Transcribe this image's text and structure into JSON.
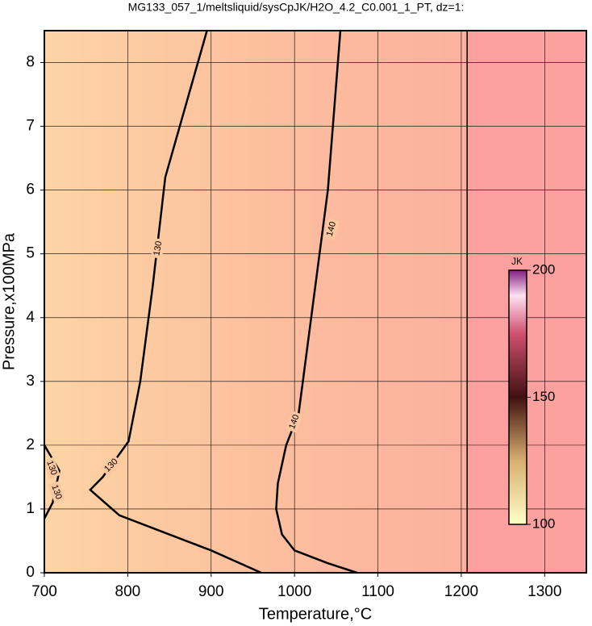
{
  "chart_data": {
    "type": "contour",
    "title": "MG133_057_1/meltsliquid/sysCpJK/H2O_4.2_C0.001_1_PT, dz=1:",
    "x_label": "Temperature,°C",
    "y_label": "Pressure,x100MPa",
    "xlim": [
      700,
      1350
    ],
    "ylim": [
      0,
      8.5
    ],
    "xticks": [
      700,
      800,
      900,
      1000,
      1100,
      1200,
      1300
    ],
    "yticks": [
      0,
      1,
      2,
      3,
      4,
      5,
      6,
      7,
      8
    ],
    "grid": true,
    "boundary_x": 1207,
    "contours": [
      {
        "level": 130,
        "x": [
          895,
          845,
          830,
          815,
          801,
          770,
          755,
          790,
          850,
          900,
          960
        ],
        "y": [
          8.5,
          6.2,
          4.5,
          3.0,
          2.06,
          1.5,
          1.3,
          0.9,
          0.6,
          0.35,
          0
        ]
      },
      {
        "level": 130,
        "x": [
          700,
          710,
          718,
          700
        ],
        "y": [
          0.85,
          1.1,
          1.6,
          2.0
        ]
      },
      {
        "level": 140,
        "x": [
          1055,
          1040,
          1025,
          1005,
          990,
          980,
          978,
          985,
          1000,
          1040,
          1075
        ],
        "y": [
          8.5,
          6.0,
          4.5,
          2.5,
          2.0,
          1.4,
          1.0,
          0.6,
          0.35,
          0.15,
          0
        ]
      }
    ],
    "colorbar": {
      "label": "JK",
      "lim": [
        100,
        200
      ],
      "ticks": [
        100,
        150,
        200
      ]
    }
  }
}
